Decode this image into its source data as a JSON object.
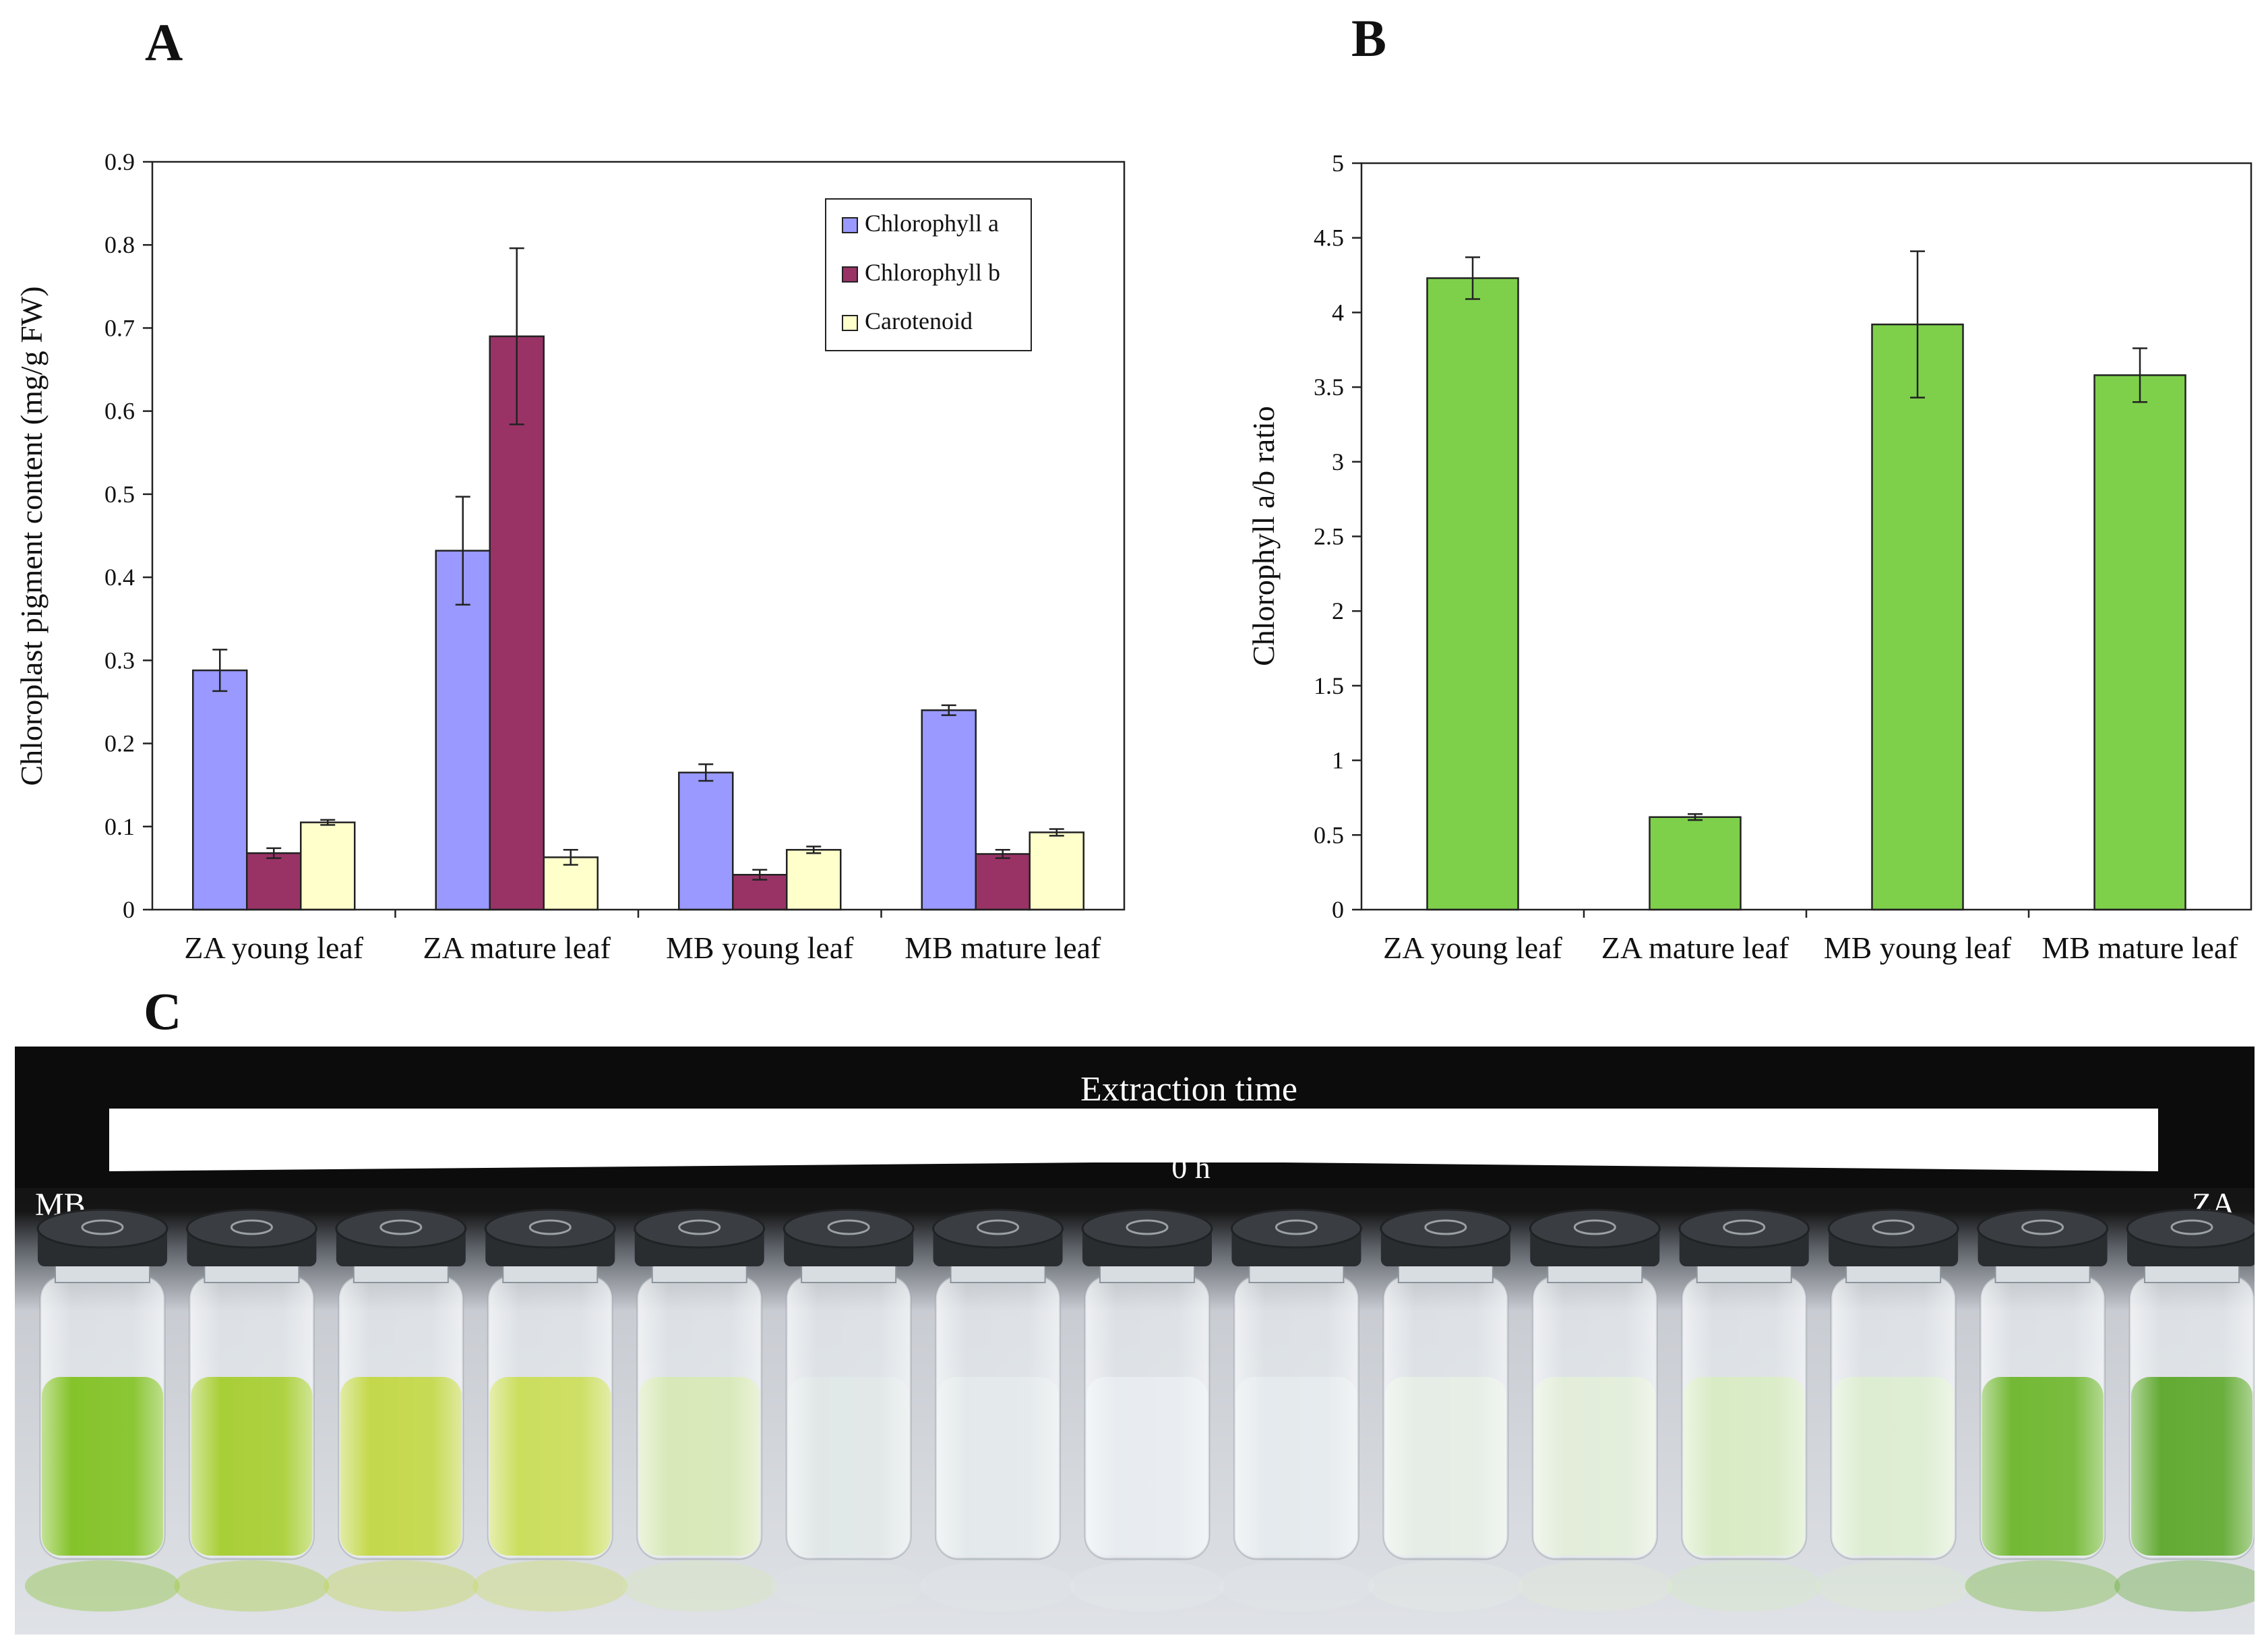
{
  "panels": {
    "a": "A",
    "b": "B",
    "c": "C"
  },
  "chart_data": [
    {
      "type": "bar",
      "categories": [
        "ZA young leaf",
        "ZA mature leaf",
        "MB young leaf",
        "MB mature leaf"
      ],
      "series": [
        {
          "name": "Chlorophyll a",
          "color": "#9999ff",
          "values": [
            0.288,
            0.432,
            0.165,
            0.24
          ],
          "errors": [
            0.025,
            0.065,
            0.01,
            0.006
          ]
        },
        {
          "name": "Chlorophyll b",
          "color": "#993366",
          "values": [
            0.068,
            0.69,
            0.042,
            0.067
          ],
          "errors": [
            0.006,
            0.106,
            0.006,
            0.005
          ]
        },
        {
          "name": "Carotenoid",
          "color": "#ffffcc",
          "values": [
            0.105,
            0.063,
            0.072,
            0.093
          ],
          "errors": [
            0.003,
            0.009,
            0.004,
            0.004
          ]
        }
      ],
      "title": "",
      "xlabel": "",
      "ylabel": "Chloroplast pigment content (mg/g FW)",
      "ylim": [
        0,
        0.9
      ],
      "yticks": [
        "0",
        "0.1",
        "0.2",
        "0.3",
        "0.4",
        "0.5",
        "0.6",
        "0.7",
        "0.8",
        "0.9"
      ],
      "legend": "top-right",
      "grid": false
    },
    {
      "type": "bar",
      "categories": [
        "ZA young leaf",
        "ZA mature leaf",
        "MB young leaf",
        "MB mature leaf"
      ],
      "series": [
        {
          "color": "#7ed04b",
          "values": [
            4.23,
            0.62,
            3.92,
            3.58
          ],
          "errors": [
            0.14,
            0.02,
            0.49,
            0.18
          ]
        }
      ],
      "title": "",
      "xlabel": "",
      "ylabel": "Chlorophyll a/b ratio",
      "ylim": [
        0,
        5
      ],
      "yticks": [
        "0",
        "0.5",
        "1",
        "1.5",
        "2",
        "2.5",
        "3",
        "3.5",
        "4",
        "4.5",
        "5"
      ],
      "grid": false
    }
  ],
  "photo": {
    "header": "Extraction time",
    "start_time": "0 h",
    "left_label": "MB",
    "right_label": "ZA",
    "vial_colors": [
      "#7fc01f",
      "#a4cc2c",
      "#c1d642",
      "#c9dc55",
      "#d6e7b4",
      "#dfe6e6",
      "#e2e8ea",
      "#e6ebef",
      "#e3e9ec",
      "#e4ece4",
      "#e1ecd8",
      "#d7eac2",
      "#dbeccf",
      "#6cb52a",
      "#5aa628"
    ]
  }
}
